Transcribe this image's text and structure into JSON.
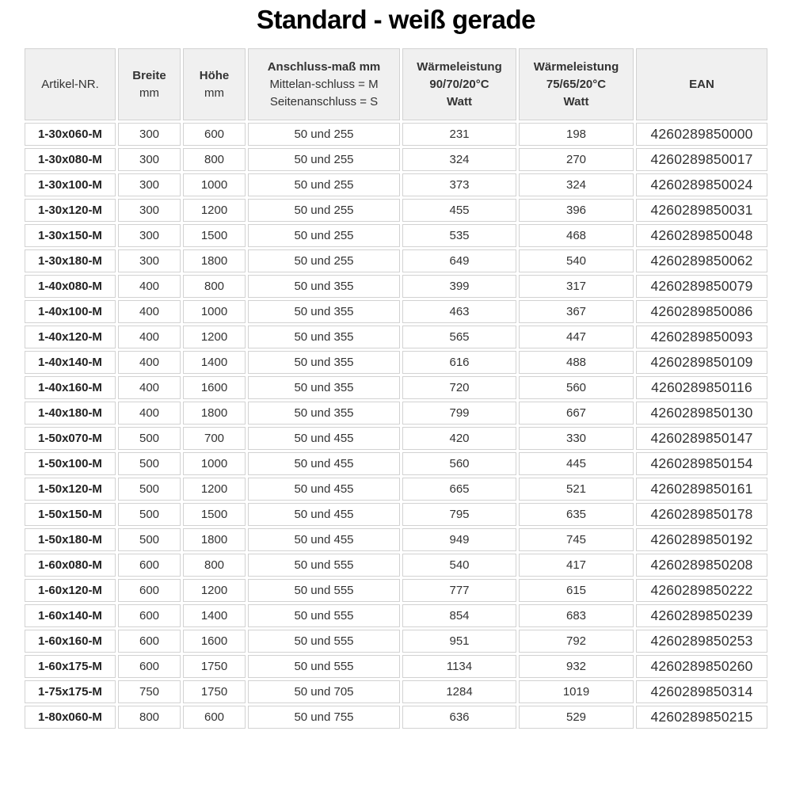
{
  "title": "Standard - weiß gerade",
  "colors": {
    "header_bg": "#f0f0f0",
    "row_bg": "#ffffff",
    "border": "#d2d2d2",
    "text": "#333333",
    "title": "#000000"
  },
  "table": {
    "columns": [
      {
        "id": "artikel",
        "lines": [
          {
            "text": "Artikel-NR.",
            "bold": false
          }
        ]
      },
      {
        "id": "breite",
        "lines": [
          {
            "text": "Breite",
            "bold": true
          },
          {
            "text": "mm",
            "bold": false
          }
        ]
      },
      {
        "id": "hoehe",
        "lines": [
          {
            "text": "Höhe",
            "bold": true
          },
          {
            "text": "mm",
            "bold": false
          }
        ]
      },
      {
        "id": "anschluss",
        "lines": [
          {
            "text": "Anschluss-maß mm",
            "bold": true
          },
          {
            "text": "Mittelan-schluss = M",
            "bold": false
          },
          {
            "text": "Seitenanschluss = S",
            "bold": false
          }
        ]
      },
      {
        "id": "waerme90",
        "lines": [
          {
            "text": "Wärmeleistung",
            "bold": true
          },
          {
            "text": "90/70/20°C",
            "bold": true
          },
          {
            "text": "Watt",
            "bold": true
          }
        ]
      },
      {
        "id": "waerme75",
        "lines": [
          {
            "text": "Wärmeleistung",
            "bold": true
          },
          {
            "text": "75/65/20°C",
            "bold": true
          },
          {
            "text": "Watt",
            "bold": true
          }
        ]
      },
      {
        "id": "ean",
        "lines": [
          {
            "text": "EAN",
            "bold": true
          }
        ]
      }
    ],
    "rows": [
      [
        "1-30x060-M",
        "300",
        "600",
        "50 und 255",
        "231",
        "198",
        "4260289850000"
      ],
      [
        "1-30x080-M",
        "300",
        "800",
        "50 und 255",
        "324",
        "270",
        "4260289850017"
      ],
      [
        "1-30x100-M",
        "300",
        "1000",
        "50 und 255",
        "373",
        "324",
        "4260289850024"
      ],
      [
        "1-30x120-M",
        "300",
        "1200",
        "50 und 255",
        "455",
        "396",
        "4260289850031"
      ],
      [
        "1-30x150-M",
        "300",
        "1500",
        "50 und 255",
        "535",
        "468",
        "4260289850048"
      ],
      [
        "1-30x180-M",
        "300",
        "1800",
        "50 und 255",
        "649",
        "540",
        "4260289850062"
      ],
      [
        "1-40x080-M",
        "400",
        "800",
        "50 und 355",
        "399",
        "317",
        "4260289850079"
      ],
      [
        "1-40x100-M",
        "400",
        "1000",
        "50 und 355",
        "463",
        "367",
        "4260289850086"
      ],
      [
        "1-40x120-M",
        "400",
        "1200",
        "50 und 355",
        "565",
        "447",
        "4260289850093"
      ],
      [
        "1-40x140-M",
        "400",
        "1400",
        "50 und 355",
        "616",
        "488",
        "4260289850109"
      ],
      [
        "1-40x160-M",
        "400",
        "1600",
        "50 und 355",
        "720",
        "560",
        "4260289850116"
      ],
      [
        "1-40x180-M",
        "400",
        "1800",
        "50 und 355",
        "799",
        "667",
        "4260289850130"
      ],
      [
        "1-50x070-M",
        "500",
        "700",
        "50 und 455",
        "420",
        "330",
        "4260289850147"
      ],
      [
        "1-50x100-M",
        "500",
        "1000",
        "50 und 455",
        "560",
        "445",
        "4260289850154"
      ],
      [
        "1-50x120-M",
        "500",
        "1200",
        "50 und 455",
        "665",
        "521",
        "4260289850161"
      ],
      [
        "1-50x150-M",
        "500",
        "1500",
        "50 und 455",
        "795",
        "635",
        "4260289850178"
      ],
      [
        "1-50x180-M",
        "500",
        "1800",
        "50 und 455",
        "949",
        "745",
        "4260289850192"
      ],
      [
        "1-60x080-M",
        "600",
        "800",
        "50 und 555",
        "540",
        "417",
        "4260289850208"
      ],
      [
        "1-60x120-M",
        "600",
        "1200",
        "50 und 555",
        "777",
        "615",
        "4260289850222"
      ],
      [
        "1-60x140-M",
        "600",
        "1400",
        "50 und 555",
        "854",
        "683",
        "4260289850239"
      ],
      [
        "1-60x160-M",
        "600",
        "1600",
        "50 und 555",
        "951",
        "792",
        "4260289850253"
      ],
      [
        "1-60x175-M",
        "600",
        "1750",
        "50 und 555",
        "1134",
        "932",
        "4260289850260"
      ],
      [
        "1-75x175-M",
        "750",
        "1750",
        "50 und 705",
        "1284",
        "1019",
        "4260289850314"
      ],
      [
        "1-80x060-M",
        "800",
        "600",
        "50 und 755",
        "636",
        "529",
        "4260289850215"
      ]
    ]
  }
}
